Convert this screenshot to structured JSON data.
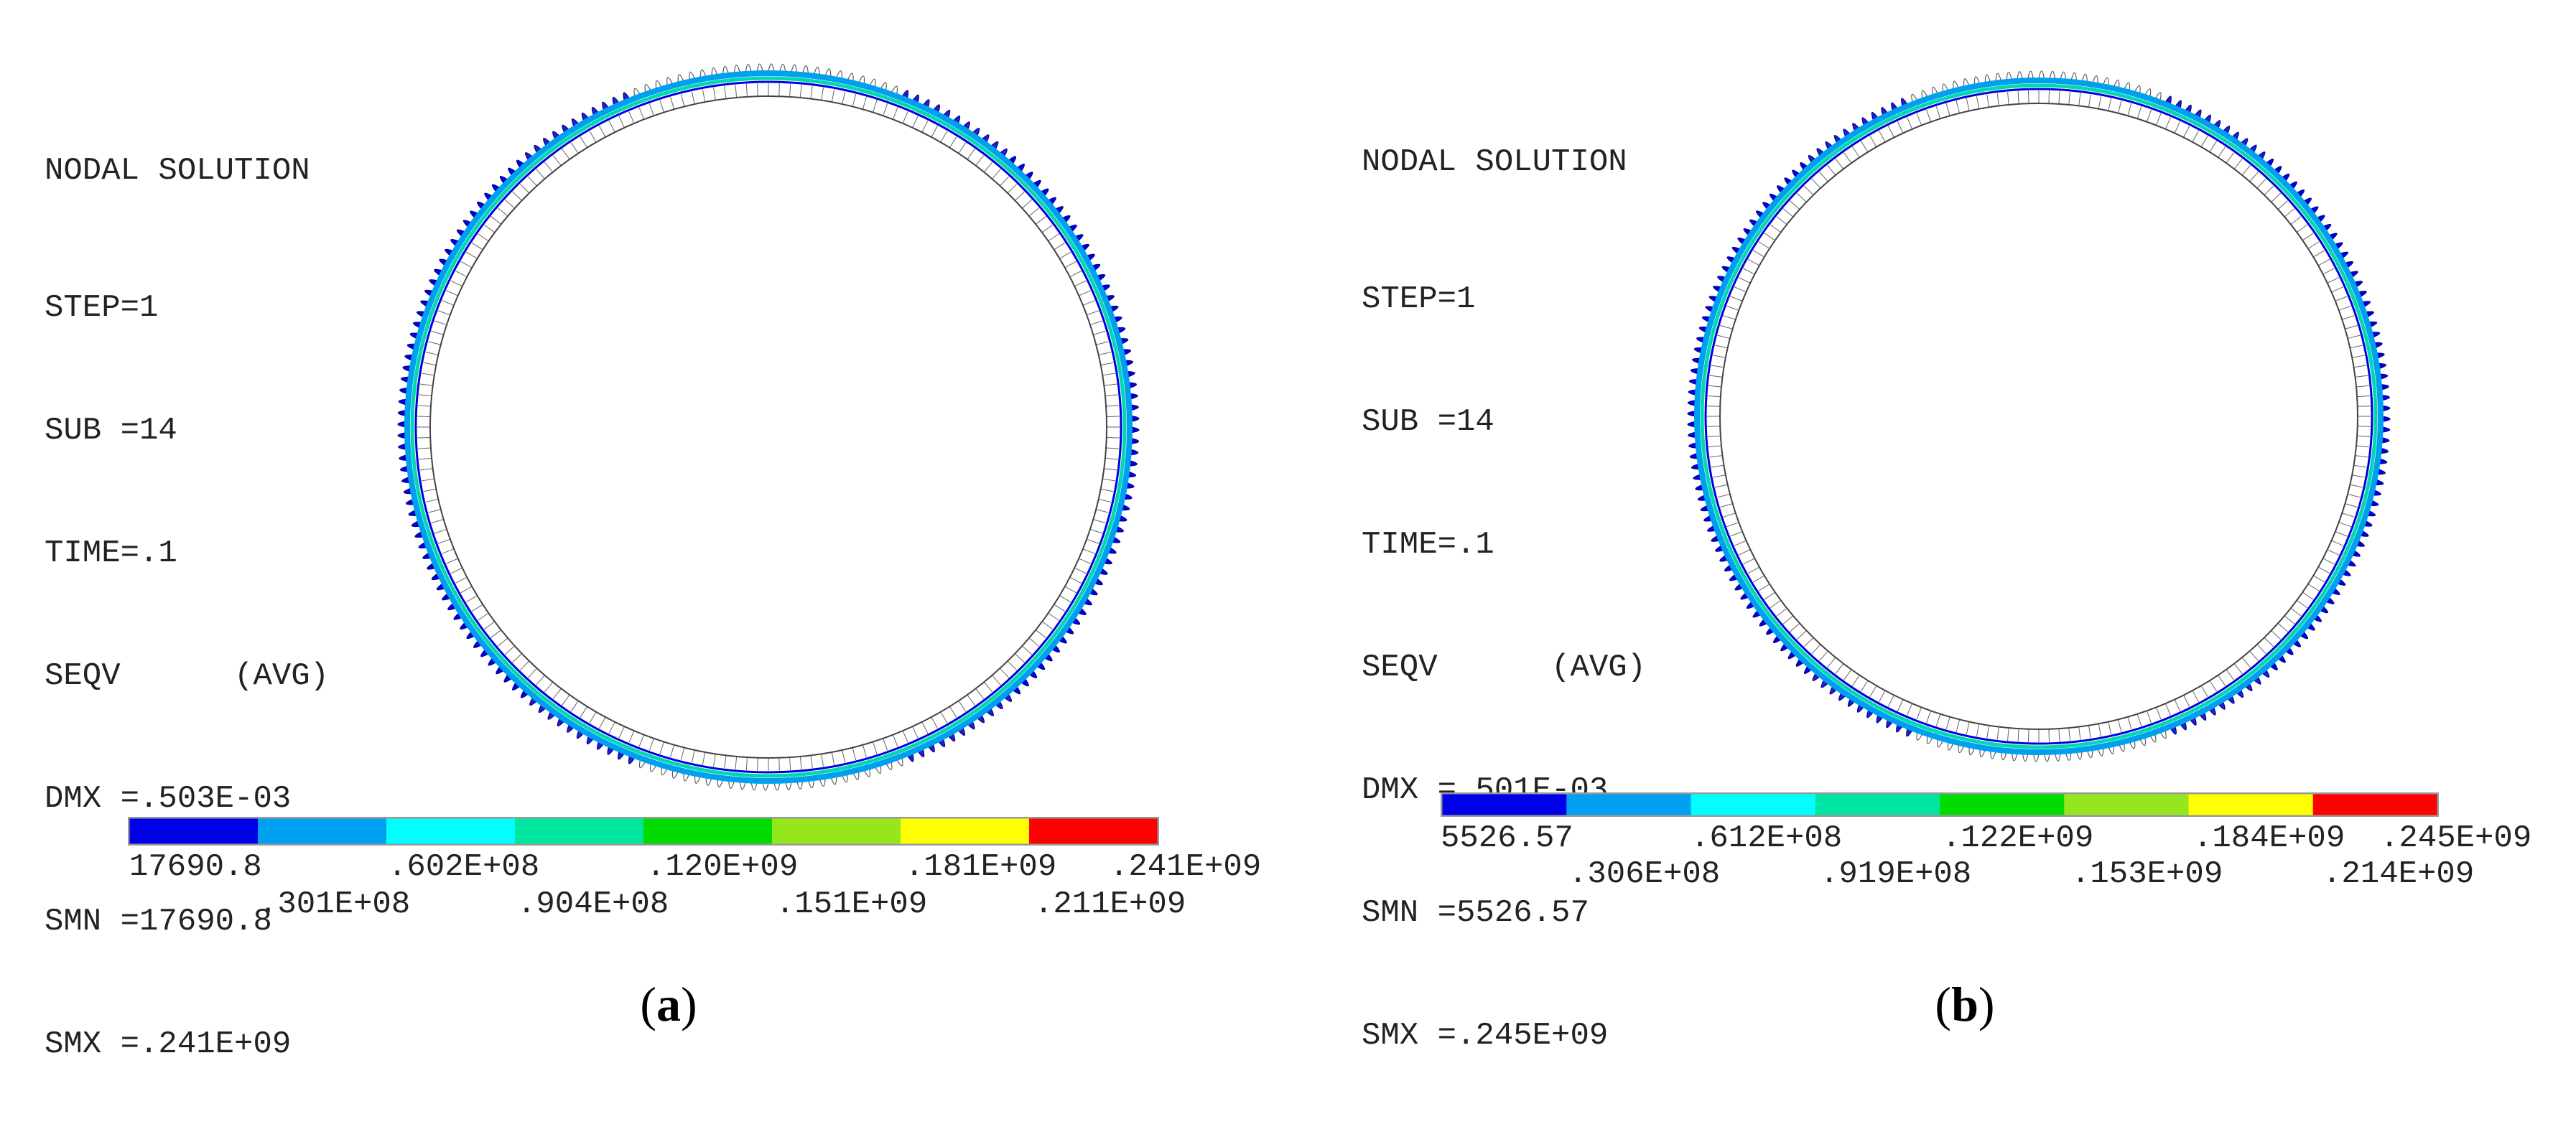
{
  "panels": [
    {
      "id": "a",
      "caption_letter": "a",
      "info": {
        "title": "NODAL SOLUTION",
        "lines": [
          "STEP=1",
          "SUB =14",
          "TIME=.1",
          "SEQV      (AVG)",
          "DMX =.503E-03",
          "SMN =17690.8",
          "SMX =.241E+09"
        ]
      },
      "legend": {
        "top_labels": [
          "17690.8",
          ".602E+08",
          ".120E+09",
          ".181E+09",
          ".241E+09"
        ],
        "bottom_labels": [
          ".301E+08",
          ".904E+08",
          ".151E+09",
          ".211E+09"
        ]
      }
    },
    {
      "id": "b",
      "caption_letter": "b",
      "info": {
        "title": "NODAL SOLUTION",
        "lines": [
          "STEP=1",
          "SUB =14",
          "TIME=.1",
          "SEQV      (AVG)",
          "DMX =.501E-03",
          "SMN =5526.57",
          "SMX =.245E+09"
        ]
      },
      "legend": {
        "top_labels": [
          "5526.57",
          ".612E+08",
          ".122E+09",
          ".184E+09",
          ".245E+09"
        ],
        "bottom_labels": [
          ".306E+08",
          ".919E+08",
          ".153E+09",
          ".214E+09"
        ]
      }
    }
  ],
  "legend_colors": [
    "#0000e6",
    "#00a0f0",
    "#00ffff",
    "#00e6a0",
    "#00dc00",
    "#96e61e",
    "#ffff00",
    "#ff0000"
  ],
  "gear_teeth": 200
}
